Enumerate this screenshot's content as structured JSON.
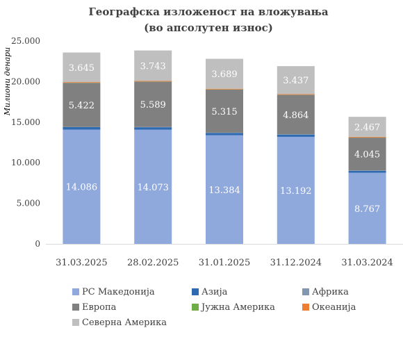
{
  "chart_data": {
    "type": "bar",
    "stacked": true,
    "title": "Географска изложеност на вложувања",
    "subtitle": "(во апсолутен износ)",
    "ylabel": "Милиони денари",
    "xlabel": "",
    "ylim": [
      0,
      25000
    ],
    "yticks": [
      "0",
      "5.000",
      "10.000",
      "15.000",
      "20.000",
      "25.000"
    ],
    "grid": false,
    "legend_position": "bottom",
    "categories": [
      "31.03.2025",
      "28.02.2025",
      "31.01.2025",
      "31.12.2024",
      "31.03.2024"
    ],
    "series": [
      {
        "name": "РС Македонија",
        "color": "#8fa9dc",
        "label_color": "#ffffff",
        "values": [
          14086,
          14073,
          13384,
          13192,
          8767
        ],
        "labels": [
          "14.086",
          "14.073",
          "13.384",
          "13.192",
          "8.767"
        ]
      },
      {
        "name": "Азија",
        "color": "#2e6ab0",
        "values": [
          300,
          300,
          290,
          280,
          250
        ]
      },
      {
        "name": "Африка",
        "color": "#8497b0",
        "values": [
          30,
          30,
          30,
          30,
          30
        ]
      },
      {
        "name": "Европа",
        "color": "#808080",
        "label_color": "#ffffff",
        "values": [
          5422,
          5589,
          5315,
          4864,
          4045
        ],
        "labels": [
          "5.422",
          "5.589",
          "5.315",
          "4.864",
          "4.045"
        ]
      },
      {
        "name": "Јужна Америка",
        "color": "#70ad47",
        "values": [
          20,
          20,
          20,
          20,
          20
        ]
      },
      {
        "name": "Океанија",
        "color": "#ed7d31",
        "values": [
          80,
          80,
          80,
          80,
          80
        ]
      },
      {
        "name": "Северна Америка",
        "color": "#bfbfbf",
        "label_color": "#ffffff",
        "values": [
          3645,
          3743,
          3689,
          3437,
          2467
        ],
        "labels": [
          "3.645",
          "3.743",
          "3.689",
          "3.437",
          "2.467"
        ]
      }
    ]
  }
}
